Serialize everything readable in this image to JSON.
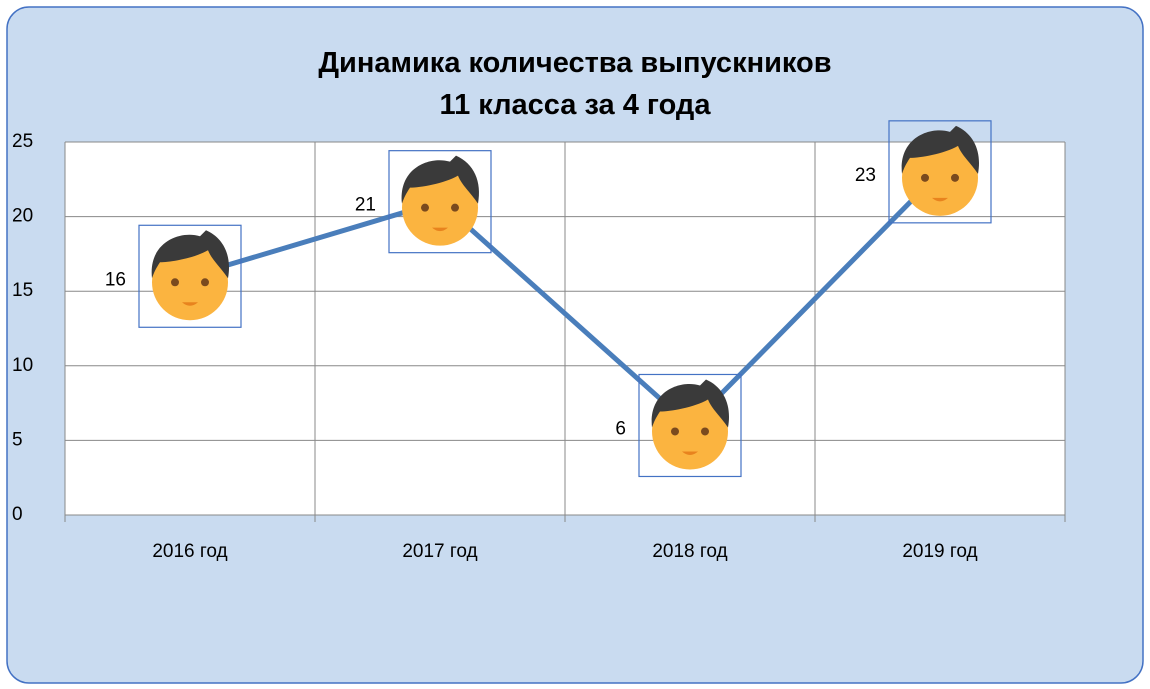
{
  "chart_data": {
    "type": "line",
    "title": "Динамика количества выпускников\n11 класса за 4 года",
    "categories": [
      "2016 год",
      "2017 год",
      "2018 год",
      "2019 год"
    ],
    "series": [
      {
        "name": null,
        "color": "#4a7ebb",
        "values": [
          16,
          21,
          6,
          23
        ]
      }
    ],
    "ylim": [
      0,
      25
    ],
    "yticks": [
      0,
      5,
      10,
      15,
      20,
      25
    ],
    "grid": true
  }
}
